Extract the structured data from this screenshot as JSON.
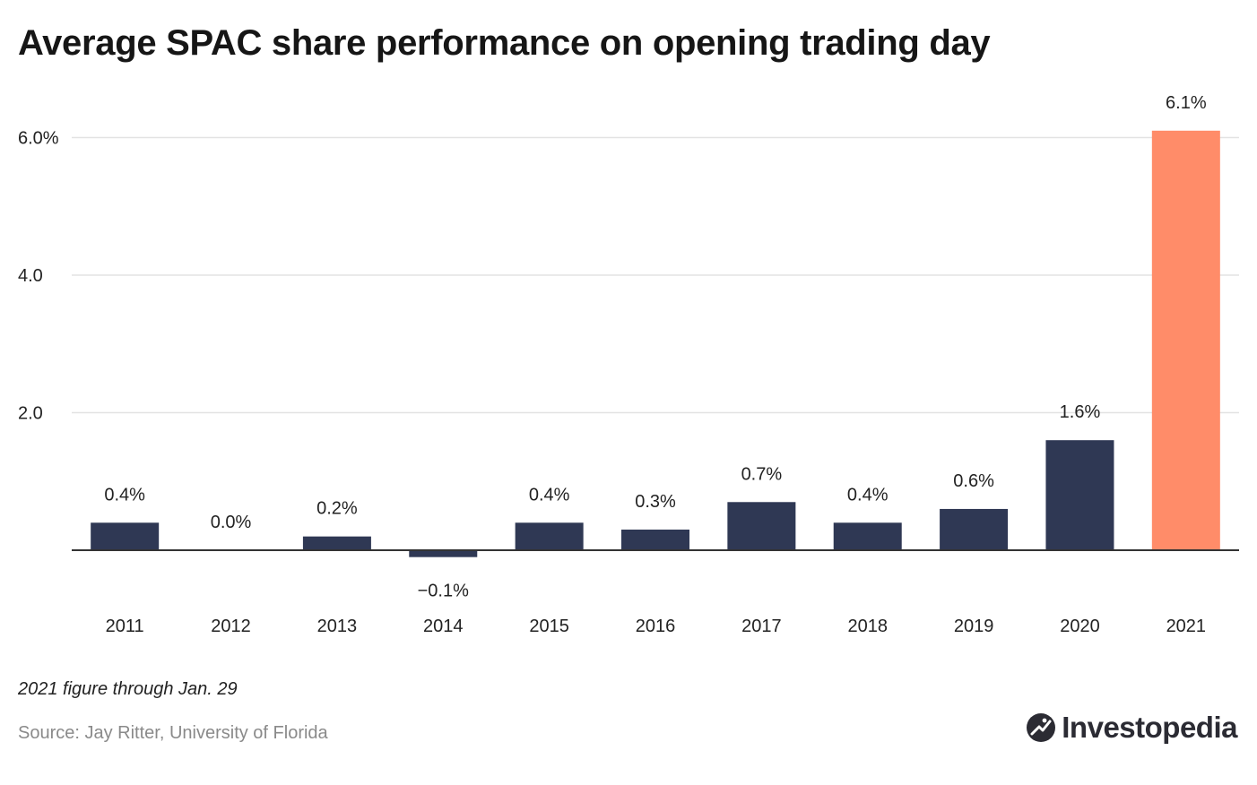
{
  "header": {
    "title": "Average SPAC share performance on opening trading day"
  },
  "footer": {
    "note": "2021 figure through Jan. 29",
    "source": "Source: Jay Ritter, University of Florida",
    "brand": "Investopedia"
  },
  "colors": {
    "bar_default": "#2f3854",
    "bar_highlight": "#ff8c69",
    "grid": "#e3e3e3",
    "axis": "#333333"
  },
  "chart_data": {
    "type": "bar",
    "categories": [
      "2011",
      "2012",
      "2013",
      "2014",
      "2015",
      "2016",
      "2017",
      "2018",
      "2019",
      "2020",
      "2021"
    ],
    "values": [
      0.4,
      0.0,
      0.2,
      -0.1,
      0.4,
      0.3,
      0.7,
      0.4,
      0.6,
      1.6,
      6.1
    ],
    "data_labels": [
      "0.4%",
      "0.0%",
      "0.2%",
      "−0.1%",
      "0.4%",
      "0.3%",
      "0.7%",
      "0.4%",
      "0.6%",
      "1.6%",
      "6.1%"
    ],
    "highlight_index": 10,
    "yticks": [
      2.0,
      4.0,
      6.0
    ],
    "ytick_labels": [
      "2.0",
      "4.0",
      "6.0%"
    ],
    "ylim": [
      -0.1,
      6.1
    ],
    "title": "Average SPAC share performance on opening trading day",
    "xlabel": "",
    "ylabel": "",
    "grid": true
  }
}
